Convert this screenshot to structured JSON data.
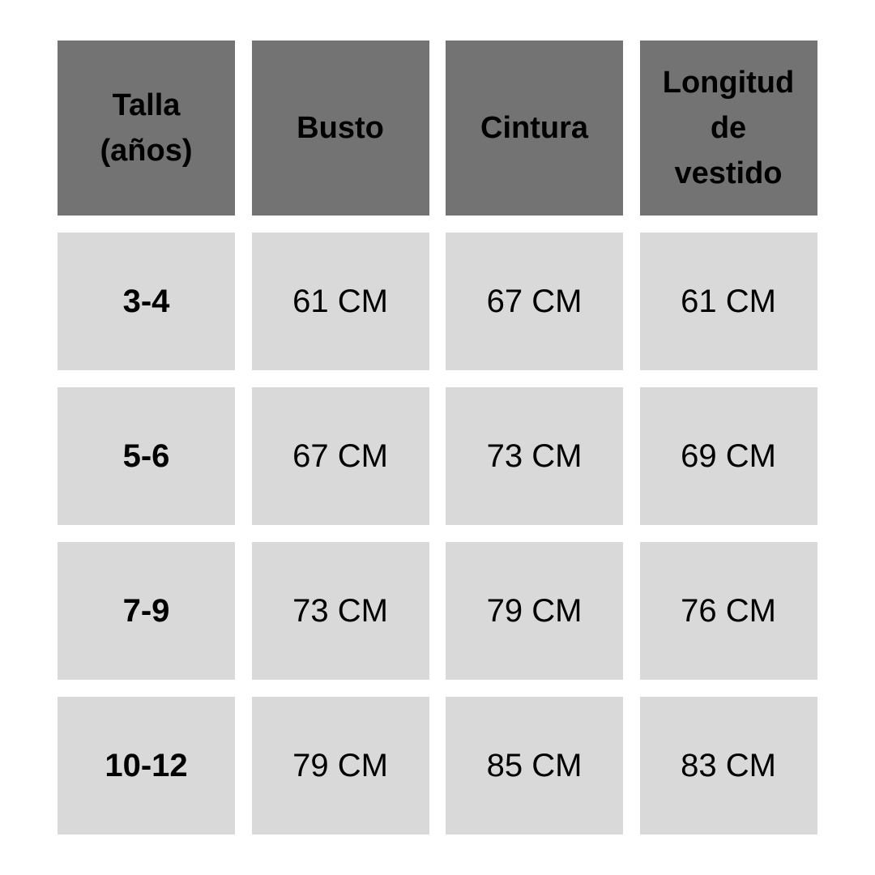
{
  "table": {
    "headers": [
      "Talla\n(años)",
      "Busto",
      "Cintura",
      "Longitud\nde\nvestido"
    ],
    "rows": [
      [
        "3-4",
        "61 CM",
        "67 CM",
        "61 CM"
      ],
      [
        "5-6",
        "67 CM",
        "73 CM",
        "69 CM"
      ],
      [
        "7-9",
        "73 CM",
        "79 CM",
        "76 CM"
      ],
      [
        "10-12",
        "79 CM",
        "85 CM",
        "83 CM"
      ]
    ]
  },
  "colors": {
    "header_bg": "#737373",
    "cell_bg": "#d9d9d9"
  }
}
